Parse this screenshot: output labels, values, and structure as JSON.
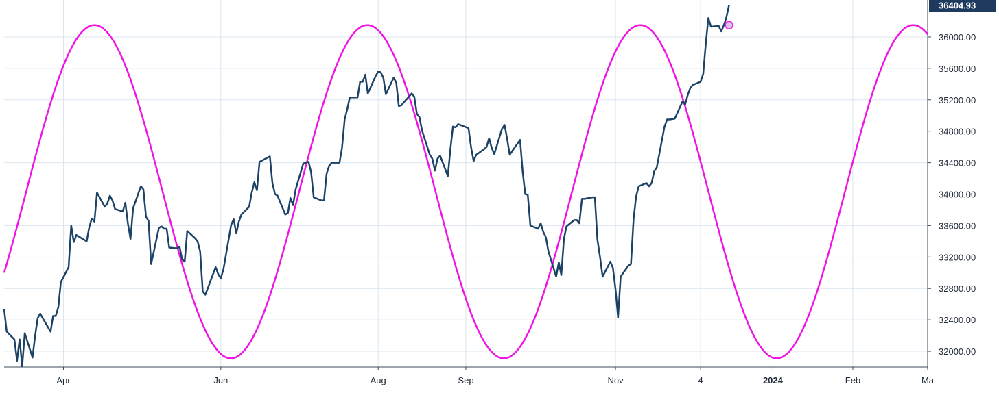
{
  "chart_data": {
    "type": "line",
    "title": "",
    "xlabel": "",
    "ylabel": "",
    "x_range": [
      "2023-03-09",
      "2024-03-01"
    ],
    "ylim": [
      31800,
      36470
    ],
    "grid": true,
    "y_ticks": [
      32000,
      32400,
      32800,
      33200,
      33600,
      34000,
      34400,
      34800,
      35200,
      35600,
      36000
    ],
    "y_tick_labels": [
      "32000.00",
      "32400.00",
      "32800.00",
      "33200.00",
      "33600.00",
      "34000.00",
      "34400.00",
      "34800.00",
      "35200.00",
      "35600.00",
      "36000.00"
    ],
    "x_ticks": [
      {
        "date": "2023-04-01",
        "label": "Apr",
        "bold": false
      },
      {
        "date": "2023-06-01",
        "label": "Jun",
        "bold": false
      },
      {
        "date": "2023-08-01",
        "label": "Aug",
        "bold": false
      },
      {
        "date": "2023-09-04",
        "label": "Sep",
        "bold": false
      },
      {
        "date": "2023-11-01",
        "label": "Nov",
        "bold": false
      },
      {
        "date": "2023-12-04",
        "label": "4",
        "bold": false
      },
      {
        "date": "2024-01-01",
        "label": "2024",
        "bold": true
      },
      {
        "date": "2024-02-01",
        "label": "Feb",
        "bold": false
      },
      {
        "date": "2024-03-01",
        "label": "Ma",
        "bold": false
      }
    ],
    "last_price": {
      "value": 36404.93,
      "label": "36404.93",
      "color": "#1f3a5f"
    },
    "series": [
      {
        "name": "",
        "color": "#1c4265",
        "points": [
          [
            "2023-03-09",
            32540
          ],
          [
            "2023-03-10",
            32250
          ],
          [
            "2023-03-13",
            32150
          ],
          [
            "2023-03-14",
            31880
          ],
          [
            "2023-03-15",
            32150
          ],
          [
            "2023-03-16",
            31810
          ],
          [
            "2023-03-17",
            32230
          ],
          [
            "2023-03-20",
            31920
          ],
          [
            "2023-03-21",
            32190
          ],
          [
            "2023-03-22",
            32420
          ],
          [
            "2023-03-23",
            32480
          ],
          [
            "2023-03-24",
            32420
          ],
          [
            "2023-03-27",
            32250
          ],
          [
            "2023-03-28",
            32450
          ],
          [
            "2023-03-29",
            32450
          ],
          [
            "2023-03-30",
            32560
          ],
          [
            "2023-03-31",
            32880
          ],
          [
            "2023-04-03",
            33070
          ],
          [
            "2023-04-04",
            33600
          ],
          [
            "2023-04-05",
            33390
          ],
          [
            "2023-04-06",
            33480
          ],
          [
            "2023-04-10",
            33400
          ],
          [
            "2023-04-11",
            33580
          ],
          [
            "2023-04-12",
            33690
          ],
          [
            "2023-04-13",
            33650
          ],
          [
            "2023-04-14",
            34020
          ],
          [
            "2023-04-17",
            33840
          ],
          [
            "2023-04-18",
            33880
          ],
          [
            "2023-04-19",
            33980
          ],
          [
            "2023-04-20",
            33920
          ],
          [
            "2023-04-21",
            33810
          ],
          [
            "2023-04-24",
            33780
          ],
          [
            "2023-04-25",
            33890
          ],
          [
            "2023-04-26",
            33620
          ],
          [
            "2023-04-27",
            33430
          ],
          [
            "2023-04-28",
            33820
          ],
          [
            "2023-05-01",
            34100
          ],
          [
            "2023-05-02",
            34060
          ],
          [
            "2023-05-03",
            33710
          ],
          [
            "2023-05-04",
            33660
          ],
          [
            "2023-05-05",
            33110
          ],
          [
            "2023-05-08",
            33570
          ],
          [
            "2023-05-09",
            33590
          ],
          [
            "2023-05-10",
            33560
          ],
          [
            "2023-05-11",
            33560
          ],
          [
            "2023-05-12",
            33320
          ],
          [
            "2023-05-15",
            33310
          ],
          [
            "2023-05-16",
            33330
          ],
          [
            "2023-05-17",
            33170
          ],
          [
            "2023-05-18",
            33140
          ],
          [
            "2023-05-19",
            33530
          ],
          [
            "2023-05-22",
            33440
          ],
          [
            "2023-05-23",
            33400
          ],
          [
            "2023-05-24",
            33270
          ],
          [
            "2023-05-25",
            32760
          ],
          [
            "2023-05-26",
            32720
          ],
          [
            "2023-05-30",
            33070
          ],
          [
            "2023-05-31",
            32980
          ],
          [
            "2023-06-01",
            32930
          ],
          [
            "2023-06-02",
            33040
          ],
          [
            "2023-06-05",
            33610
          ],
          [
            "2023-06-06",
            33680
          ],
          [
            "2023-06-07",
            33500
          ],
          [
            "2023-06-08",
            33650
          ],
          [
            "2023-06-09",
            33740
          ],
          [
            "2023-06-12",
            33840
          ],
          [
            "2023-06-13",
            34020
          ],
          [
            "2023-06-14",
            34150
          ],
          [
            "2023-06-15",
            34050
          ],
          [
            "2023-06-16",
            34410
          ],
          [
            "2023-06-20",
            34480
          ],
          [
            "2023-06-21",
            34140
          ],
          [
            "2023-06-22",
            34000
          ],
          [
            "2023-06-23",
            33980
          ],
          [
            "2023-06-26",
            33740
          ],
          [
            "2023-06-27",
            33760
          ],
          [
            "2023-06-28",
            33950
          ],
          [
            "2023-06-29",
            33860
          ],
          [
            "2023-06-30",
            34060
          ],
          [
            "2023-07-03",
            34390
          ],
          [
            "2023-07-05",
            34410
          ],
          [
            "2023-07-06",
            34280
          ],
          [
            "2023-07-07",
            33960
          ],
          [
            "2023-07-10",
            33920
          ],
          [
            "2023-07-11",
            33920
          ],
          [
            "2023-07-12",
            34260
          ],
          [
            "2023-07-13",
            34360
          ],
          [
            "2023-07-14",
            34400
          ],
          [
            "2023-07-17",
            34400
          ],
          [
            "2023-07-18",
            34590
          ],
          [
            "2023-07-19",
            34950
          ],
          [
            "2023-07-20",
            35080
          ],
          [
            "2023-07-21",
            35230
          ],
          [
            "2023-07-24",
            35230
          ],
          [
            "2023-07-25",
            35430
          ],
          [
            "2023-07-26",
            35430
          ],
          [
            "2023-07-27",
            35520
          ],
          [
            "2023-07-28",
            35280
          ],
          [
            "2023-07-31",
            35500
          ],
          [
            "2023-08-01",
            35560
          ],
          [
            "2023-08-02",
            35550
          ],
          [
            "2023-08-03",
            35480
          ],
          [
            "2023-08-04",
            35270
          ],
          [
            "2023-08-07",
            35480
          ],
          [
            "2023-08-08",
            35420
          ],
          [
            "2023-08-09",
            35120
          ],
          [
            "2023-08-10",
            35130
          ],
          [
            "2023-08-11",
            35170
          ],
          [
            "2023-08-14",
            35280
          ],
          [
            "2023-08-15",
            35240
          ],
          [
            "2023-08-16",
            35020
          ],
          [
            "2023-08-17",
            34980
          ],
          [
            "2023-08-18",
            34810
          ],
          [
            "2023-08-21",
            34500
          ],
          [
            "2023-08-22",
            34450
          ],
          [
            "2023-08-23",
            34300
          ],
          [
            "2023-08-24",
            34450
          ],
          [
            "2023-08-25",
            34490
          ],
          [
            "2023-08-28",
            34230
          ],
          [
            "2023-08-29",
            34570
          ],
          [
            "2023-08-30",
            34860
          ],
          [
            "2023-08-31",
            34850
          ],
          [
            "2023-09-01",
            34890
          ],
          [
            "2023-09-05",
            34840
          ],
          [
            "2023-09-06",
            34600
          ],
          [
            "2023-09-07",
            34420
          ],
          [
            "2023-09-08",
            34500
          ],
          [
            "2023-09-11",
            34570
          ],
          [
            "2023-09-12",
            34600
          ],
          [
            "2023-09-13",
            34710
          ],
          [
            "2023-09-14",
            34590
          ],
          [
            "2023-09-15",
            34510
          ],
          [
            "2023-09-18",
            34830
          ],
          [
            "2023-09-19",
            34880
          ],
          [
            "2023-09-20",
            34700
          ],
          [
            "2023-09-21",
            34500
          ],
          [
            "2023-09-22",
            34550
          ],
          [
            "2023-09-25",
            34690
          ],
          [
            "2023-09-26",
            34290
          ],
          [
            "2023-09-27",
            34000
          ],
          [
            "2023-09-28",
            33990
          ],
          [
            "2023-09-29",
            33600
          ],
          [
            "2023-10-02",
            33560
          ],
          [
            "2023-10-03",
            33630
          ],
          [
            "2023-10-04",
            33520
          ],
          [
            "2023-10-05",
            33450
          ],
          [
            "2023-10-06",
            33270
          ],
          [
            "2023-10-09",
            32950
          ],
          [
            "2023-10-10",
            33130
          ],
          [
            "2023-10-11",
            32970
          ],
          [
            "2023-10-12",
            33430
          ],
          [
            "2023-10-13",
            33590
          ],
          [
            "2023-10-16",
            33670
          ],
          [
            "2023-10-17",
            33670
          ],
          [
            "2023-10-18",
            33630
          ],
          [
            "2023-10-19",
            33940
          ],
          [
            "2023-10-20",
            33940
          ],
          [
            "2023-10-23",
            33960
          ],
          [
            "2023-10-24",
            33960
          ],
          [
            "2023-10-25",
            33420
          ],
          [
            "2023-10-26",
            33200
          ],
          [
            "2023-10-27",
            32950
          ],
          [
            "2023-10-30",
            33140
          ],
          [
            "2023-10-31",
            33060
          ],
          [
            "2023-11-01",
            32790
          ],
          [
            "2023-11-02",
            32430
          ],
          [
            "2023-11-03",
            32950
          ],
          [
            "2023-11-06",
            33090
          ],
          [
            "2023-11-07",
            33110
          ],
          [
            "2023-11-08",
            33680
          ],
          [
            "2023-11-09",
            33970
          ],
          [
            "2023-11-10",
            34100
          ],
          [
            "2023-11-13",
            34140
          ],
          [
            "2023-11-14",
            34100
          ],
          [
            "2023-11-15",
            34140
          ],
          [
            "2023-11-16",
            34290
          ],
          [
            "2023-11-17",
            34340
          ],
          [
            "2023-11-20",
            34860
          ],
          [
            "2023-11-21",
            34950
          ],
          [
            "2023-11-22",
            34950
          ],
          [
            "2023-11-24",
            34960
          ],
          [
            "2023-11-27",
            35180
          ],
          [
            "2023-11-28",
            35140
          ],
          [
            "2023-11-29",
            35260
          ],
          [
            "2023-11-30",
            35350
          ],
          [
            "2023-12-01",
            35390
          ],
          [
            "2023-12-04",
            35430
          ],
          [
            "2023-12-05",
            35530
          ],
          [
            "2023-12-06",
            35920
          ],
          [
            "2023-12-07",
            36240
          ],
          [
            "2023-12-08",
            36130
          ],
          [
            "2023-12-11",
            36140
          ],
          [
            "2023-12-12",
            36070
          ],
          [
            "2023-12-13",
            36150
          ],
          [
            "2023-12-14",
            36250
          ],
          [
            "2023-12-15",
            36404.93
          ]
        ]
      },
      {
        "name": "",
        "color": "#f013e4",
        "type": "sine",
        "amplitude": 2120,
        "center": 34030,
        "period_days": 105.8,
        "peak_date": "2023-04-13",
        "x_range": [
          "2023-03-09",
          "2024-03-01"
        ],
        "marker": {
          "date": "2023-12-15",
          "value": 36150
        }
      }
    ]
  }
}
